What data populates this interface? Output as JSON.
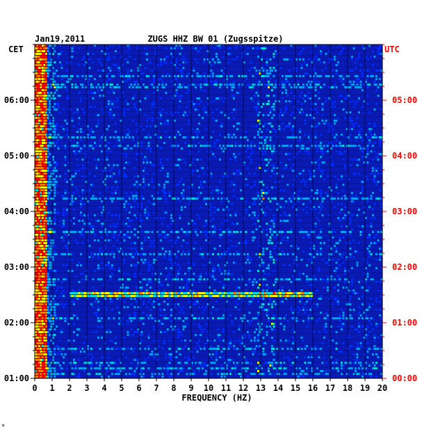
{
  "chart_data": {
    "type": "heatmap",
    "date": "Jan19,2011",
    "title": "ZUGS HHZ BW 01 (Zugsspitze)",
    "xlabel": "FREQUENCY (HZ)",
    "left_axis_label": "CET",
    "right_axis_label": "UTC",
    "xlim": [
      0,
      20
    ],
    "x_ticks": [
      "0",
      "1",
      "2",
      "3",
      "4",
      "5",
      "6",
      "7",
      "8",
      "9",
      "10",
      "11",
      "12",
      "13",
      "14",
      "15",
      "16",
      "17",
      "18",
      "19",
      "20"
    ],
    "cet_ticks": [
      "06:00",
      "05:00",
      "04:00",
      "03:00",
      "02:00",
      "01:00"
    ],
    "utc_ticks": [
      "05:00",
      "04:00",
      "03:00",
      "02:00",
      "01:00",
      "00:00"
    ],
    "time_range_cet": [
      "01:00",
      "07:00"
    ],
    "colormap": [
      "#0000c8",
      "#0030ff",
      "#00a0ff",
      "#00e0e0",
      "#ffff00",
      "#ff8000",
      "#ff0000"
    ],
    "background_color": "#0a1ab4",
    "left_label_color": "#000000",
    "right_label_color": "#ff0000",
    "notable_features": [
      {
        "freq_range_hz": [
          0,
          0.6
        ],
        "intensity": "high",
        "description": "strong low-frequency energy throughout"
      },
      {
        "freq_range_hz": [
          12.8,
          13.8
        ],
        "intensity": "medium"
      },
      {
        "freq_range_hz": [
          2,
          16
        ],
        "time_cet": "02:30",
        "intensity": "medium"
      }
    ],
    "footer_mark": "*"
  }
}
